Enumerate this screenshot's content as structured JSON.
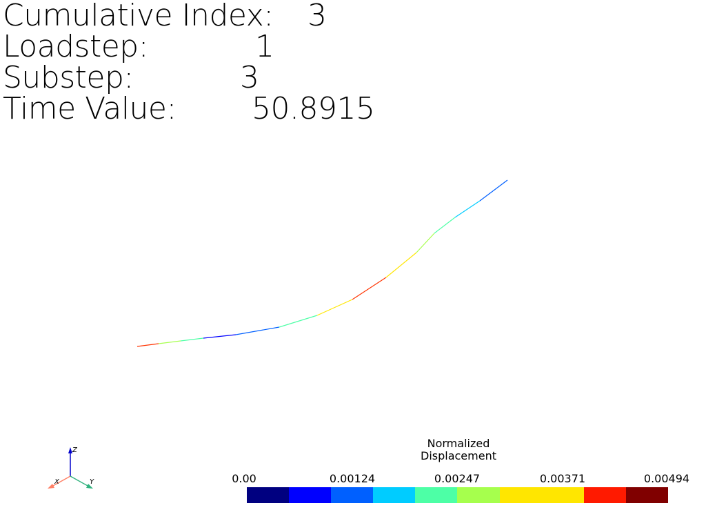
{
  "info": [
    {
      "label": "Cumulative Index:",
      "value": "3"
    },
    {
      "label": "Loadstep:",
      "value": "1"
    },
    {
      "label": "Substep:",
      "value": "3"
    },
    {
      "label": "Time Value:",
      "value": "50.8915"
    }
  ],
  "legend": {
    "title_line1": "Normalized",
    "title_line2": "Displacement",
    "ticks": [
      "0.00",
      "0.00124",
      "0.00247",
      "0.00371",
      "0.00494"
    ],
    "colors": [
      "#000080",
      "#0000ff",
      "#0060ff",
      "#00ccff",
      "#4dffa6",
      "#a6ff4d",
      "#ffe600",
      "#ffe600",
      "#ff1a00",
      "#800000"
    ]
  },
  "axes_triad": {
    "z_label": "Z",
    "x_label": "X",
    "y_label": "Y",
    "z_color": "#0000cc",
    "x_color": "#ff8066",
    "y_color": "#33b380"
  },
  "beam": {
    "segment_colors": [
      "#ff3300",
      "#a6ff4d",
      "#4dffa6",
      "#0000ff",
      "#0060ff",
      "#4dffa6",
      "#ffe600",
      "#ff3300",
      "#ffe600",
      "#a6ff4d",
      "#4dffa6",
      "#00ccff",
      "#0060ff",
      "#000080"
    ]
  }
}
